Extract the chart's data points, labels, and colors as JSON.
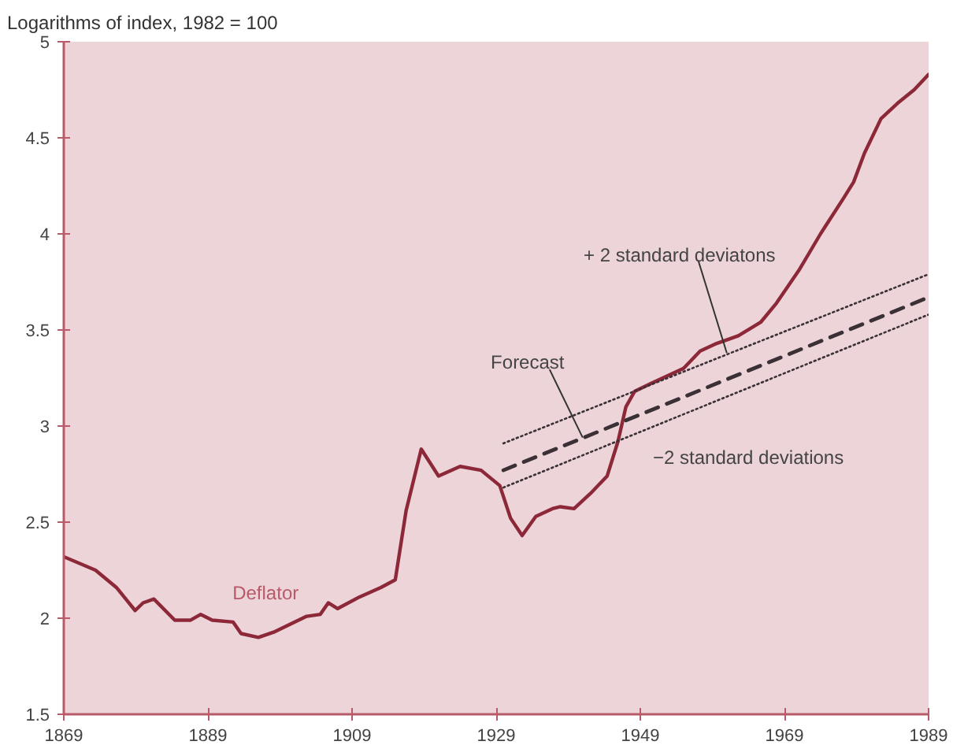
{
  "chart_data": {
    "type": "line",
    "title": "Logarithms of index, 1982 = 100",
    "xlim": [
      1869,
      1989
    ],
    "xticks": [
      1869,
      1889,
      1909,
      1929,
      1949,
      1969,
      1989
    ],
    "ylim": [
      1.5,
      5
    ],
    "yticks": [
      1.5,
      2,
      2.5,
      3,
      3.5,
      4,
      4.5,
      5
    ],
    "grid": false,
    "series": [
      {
        "color": "#8c2838",
        "line_style": "solid",
        "x": [
          1869,
          1873.4,
          1876.3,
          1878.9,
          1880,
          1881.5,
          1884.4,
          1886.6,
          1888,
          1889.6,
          1892.5,
          1893.6,
          1896,
          1898.3,
          1902.7,
          1904.6,
          1905.7,
          1907,
          1910,
          1913,
          1915,
          1916.5,
          1918.6,
          1921,
          1924,
          1926.9,
          1929.5,
          1931,
          1932.6,
          1934.5,
          1936.8,
          1937.9,
          1939.8,
          1942.1,
          1944.4,
          1945.9,
          1947,
          1948.2,
          1950.4,
          1952.7,
          1955,
          1957.3,
          1959.6,
          1962.6,
          1965.7,
          1967.9,
          1971,
          1974,
          1977.1,
          1978.6,
          1980.1,
          1982.4,
          1984.7,
          1987,
          1989
        ],
        "values": [
          2.32,
          2.25,
          2.16,
          2.04,
          2.08,
          2.1,
          1.99,
          1.99,
          2.02,
          1.99,
          1.98,
          1.92,
          1.9,
          1.93,
          2.01,
          2.02,
          2.08,
          2.05,
          2.11,
          2.16,
          2.2,
          2.56,
          2.88,
          2.74,
          2.79,
          2.77,
          2.69,
          2.52,
          2.43,
          2.53,
          2.57,
          2.58,
          2.57,
          2.65,
          2.74,
          2.92,
          3.1,
          3.18,
          3.22,
          3.26,
          3.3,
          3.39,
          3.43,
          3.47,
          3.54,
          3.64,
          3.81,
          4.0,
          4.18,
          4.27,
          4.42,
          4.6,
          4.68,
          4.75,
          4.83
        ]
      },
      {
        "color": "#3a3035",
        "line_style": "dashed",
        "x": [
          1930,
          1989
        ],
        "values": [
          2.77,
          3.67
        ]
      },
      {
        "color": "#3a3035",
        "line_style": "dotted",
        "x": [
          1930,
          1989
        ],
        "values": [
          2.91,
          3.79
        ]
      },
      {
        "color": "#3a3035",
        "line_style": "dotted",
        "x": [
          1930,
          1989
        ],
        "values": [
          2.68,
          3.58
        ]
      }
    ],
    "annotations": [
      {
        "text": "Deflator",
        "x": 1897,
        "y": 1.92
      },
      {
        "text": "Forecast",
        "x": 1941,
        "y": 2.94
      },
      {
        "text": "+ 2 standard deviatons",
        "x": 1961,
        "y": 3.38
      },
      {
        "text": "−2 standard deviations",
        "x": 1949,
        "y": 2.95
      }
    ]
  }
}
